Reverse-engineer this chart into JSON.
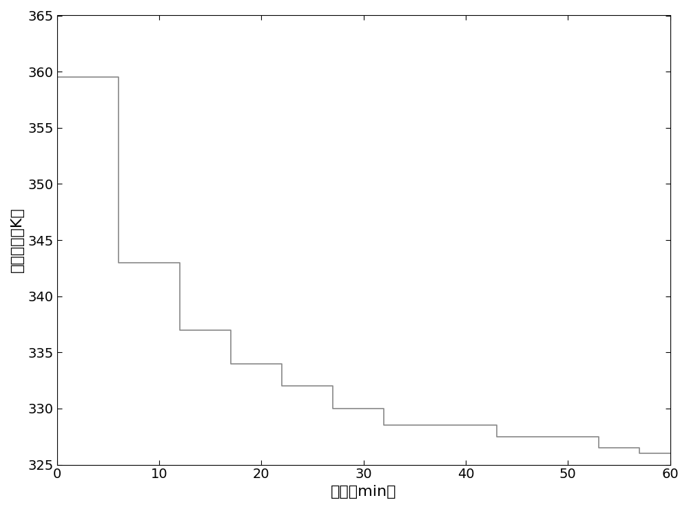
{
  "title": "",
  "xlabel": "时间（min）",
  "ylabel": "反应温度（K）",
  "xlim": [
    0,
    60
  ],
  "ylim": [
    325,
    365
  ],
  "xticks": [
    0,
    10,
    20,
    30,
    40,
    50,
    60
  ],
  "yticks": [
    325,
    330,
    335,
    340,
    345,
    350,
    355,
    360,
    365
  ],
  "line_color": "#888888",
  "line_width": 1.2,
  "background_color": "#ffffff",
  "step_x": [
    0,
    6,
    6,
    12,
    12,
    17,
    17,
    22,
    22,
    27,
    27,
    32,
    32,
    43,
    43,
    53,
    53,
    57,
    57,
    60
  ],
  "step_y": [
    359.5,
    359.5,
    343.0,
    343.0,
    337.0,
    337.0,
    334.0,
    334.0,
    332.0,
    332.0,
    330.0,
    330.0,
    328.5,
    328.5,
    327.5,
    327.5,
    326.5,
    326.5,
    326.0,
    326.0
  ],
  "font_size_label": 16,
  "font_size_tick": 14
}
